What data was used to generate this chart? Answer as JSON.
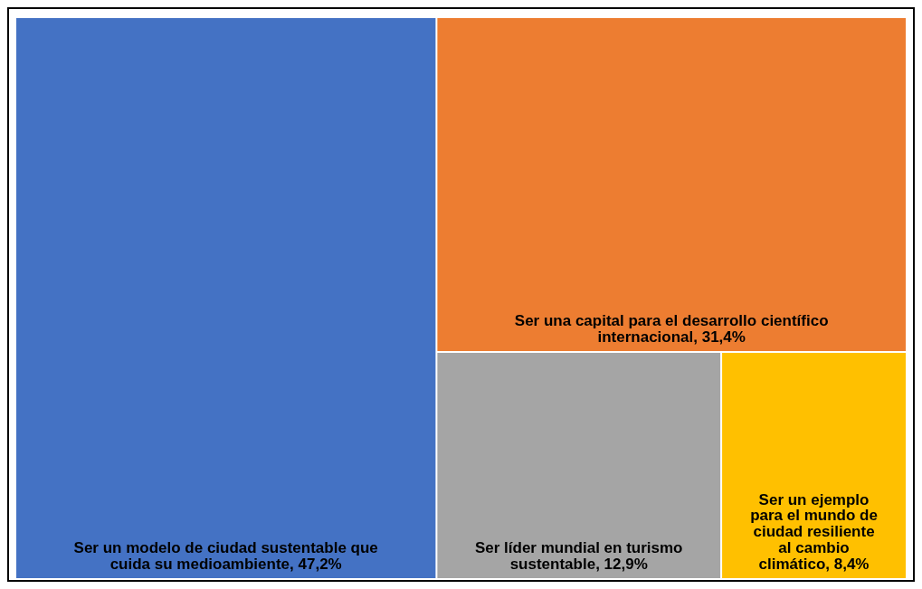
{
  "chart_data": {
    "type": "other",
    "categories": [
      "Ser un modelo de ciudad sustentable que cuida su medioambiente",
      "Ser una capital para el desarrollo científico internacional",
      "Ser líder mundial en turismo sustentable",
      "Ser un ejemplo para el mundo de ciudad resiliente al cambio climático"
    ],
    "values": [
      47.2,
      31.4,
      12.9,
      8.4
    ],
    "value_labels": [
      ", 47,2%",
      ", 31,4%",
      ", 12,9%",
      ", 8,4%"
    ],
    "colors": [
      "#4472c4",
      "#ed7d31",
      "#a5a5a5",
      "#ffc000"
    ]
  }
}
